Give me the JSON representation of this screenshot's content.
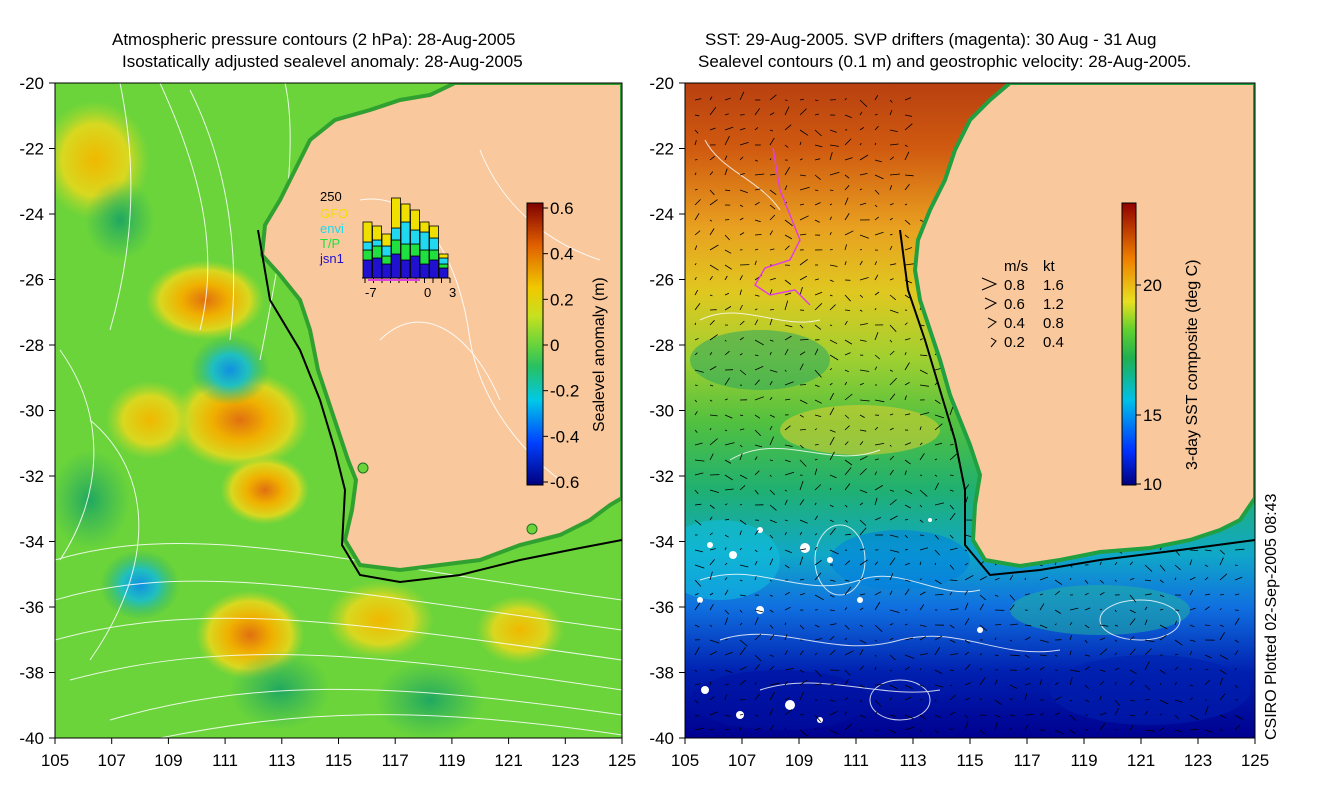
{
  "left_panel": {
    "title_line1": "Atmospheric pressure contours (2 hPa): 28-Aug-2005",
    "title_line2": "Isostatically adjusted sealevel anomaly: 28-Aug-2005",
    "colorbar": {
      "label": "Sealevel anomaly (m)",
      "ticks": [
        "0.6",
        "0.4",
        "0.2",
        "0",
        "-0.2",
        "-0.4",
        "-0.6"
      ]
    },
    "inset": {
      "ymax_label": "250",
      "legend": [
        "GFO",
        "envi",
        "T/P",
        "jsn1"
      ],
      "legend_colors": [
        "#f0e000",
        "#20d8f0",
        "#20e040",
        "#2010d0"
      ],
      "x_labels": [
        "-7",
        "0",
        "3"
      ]
    }
  },
  "right_panel": {
    "title_line1": "SST: 29-Aug-2005. SVP drifters (magenta): 30 Aug - 31 Aug",
    "title_line2": "Sealevel contours (0.1 m) and geostrophic velocity: 28-Aug-2005.",
    "colorbar": {
      "label": "3-day SST composite (deg C)",
      "ticks": [
        "20",
        "15",
        "10"
      ]
    },
    "velocity_key": {
      "header_ms": "m/s",
      "header_kt": "kt",
      "rows": [
        {
          "ms": "0.8",
          "kt": "1.6"
        },
        {
          "ms": "0.6",
          "kt": "1.2"
        },
        {
          "ms": "0.4",
          "kt": "0.8"
        },
        {
          "ms": "0.2",
          "kt": "0.4"
        }
      ]
    }
  },
  "axes": {
    "y_labels": [
      "-20",
      "-22",
      "-24",
      "-26",
      "-28",
      "-30",
      "-32",
      "-34",
      "-36",
      "-38",
      "-40"
    ],
    "x_labels": [
      "105",
      "107",
      "109",
      "111",
      "113",
      "115",
      "117",
      "119",
      "121",
      "123",
      "125"
    ]
  },
  "credit": "CSIRO Plotted 02-Sep-2005 08:43",
  "colors": {
    "land": "#f9c89c",
    "ocean_left": "#5ccf3e",
    "drifter": "#e040e0"
  }
}
